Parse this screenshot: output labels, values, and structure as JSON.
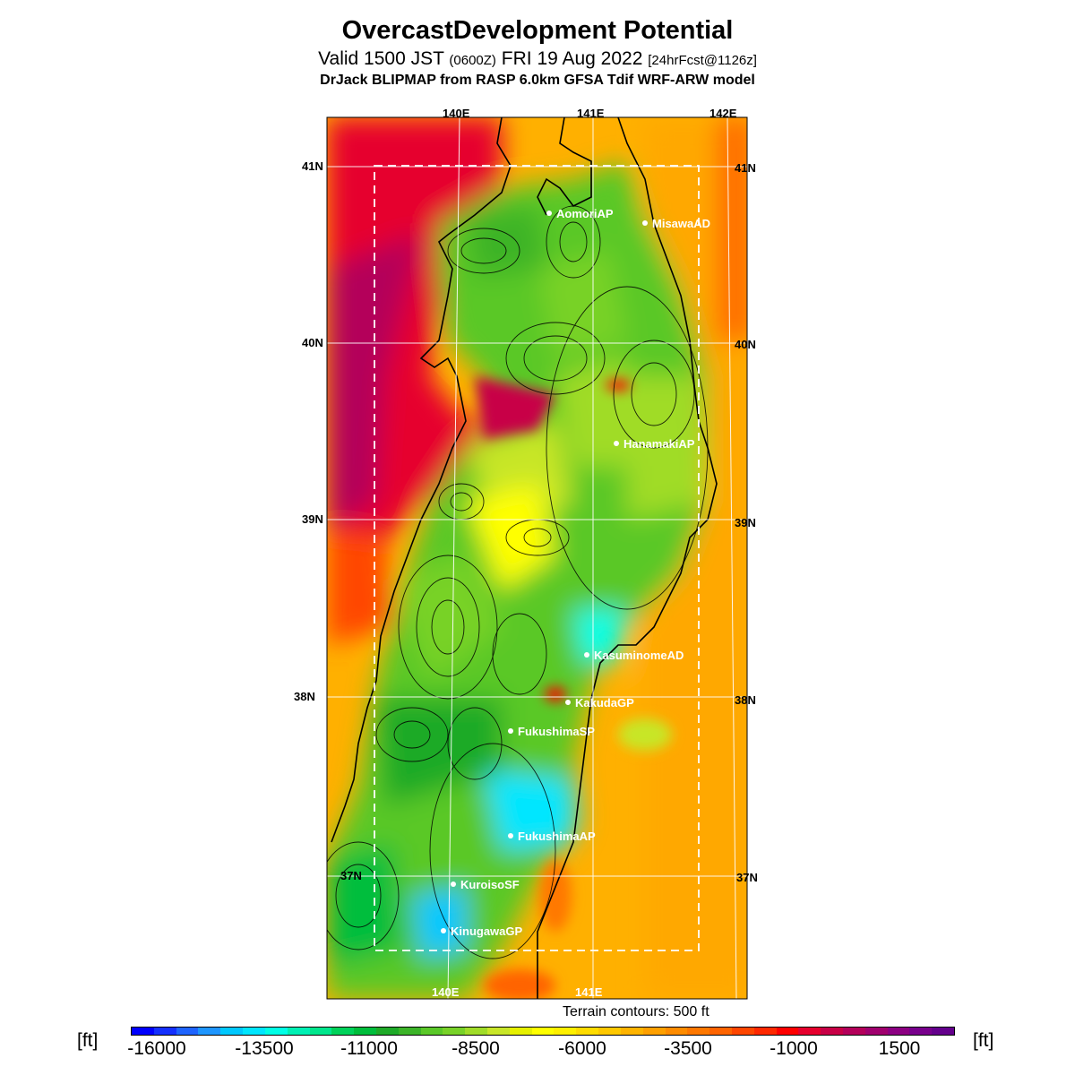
{
  "title": "OvercastDevelopment Potential",
  "subtitle": {
    "valid": "Valid 1500 JST",
    "zulu": "(0600Z)",
    "date": "FRI 19 Aug 2022",
    "fcst": "[24hrFcst@1126z]"
  },
  "model_line": "DrJack BLIPMAP from RASP 6.0km GFSA Tdif WRF-ARW model",
  "lon_labels": [
    "140E",
    "141E",
    "142E"
  ],
  "lat_labels": [
    "41N",
    "40N",
    "39N",
    "38N",
    "37N"
  ],
  "stations": [
    {
      "name": "AomoriAP"
    },
    {
      "name": "MisawaAD"
    },
    {
      "name": "HanamakiAP"
    },
    {
      "name": "KasuminomeAD"
    },
    {
      "name": "KakudaGP"
    },
    {
      "name": "FukushimaSP"
    },
    {
      "name": "FukushimaAP"
    },
    {
      "name": "KuroisoSF"
    },
    {
      "name": "KinugawaGP"
    }
  ],
  "terrain_note": "Terrain contours: 500 ft",
  "colorbar": {
    "unit": "[ft]",
    "ticks": [
      "-16000",
      "-13500",
      "-11000",
      "-8500",
      "-6000",
      "-3500",
      "-1000",
      "1500"
    ],
    "colors": [
      "#0000ff",
      "#1430ff",
      "#1e64ff",
      "#1e96ff",
      "#00c8ff",
      "#00e6ff",
      "#00ffe6",
      "#00f0b4",
      "#00e68c",
      "#00d25a",
      "#00be3c",
      "#1eaa28",
      "#3cb428",
      "#5ac828",
      "#78d228",
      "#a0dc28",
      "#c8e628",
      "#e6f000",
      "#ffff00",
      "#fff000",
      "#ffdc00",
      "#ffc800",
      "#ffb400",
      "#ffa000",
      "#ff8c00",
      "#ff7800",
      "#ff6400",
      "#ff4600",
      "#ff2800",
      "#ff0000",
      "#e6002d",
      "#c80046",
      "#b4005a",
      "#a0006e",
      "#8c0082",
      "#78008c",
      "#64008c"
    ]
  }
}
